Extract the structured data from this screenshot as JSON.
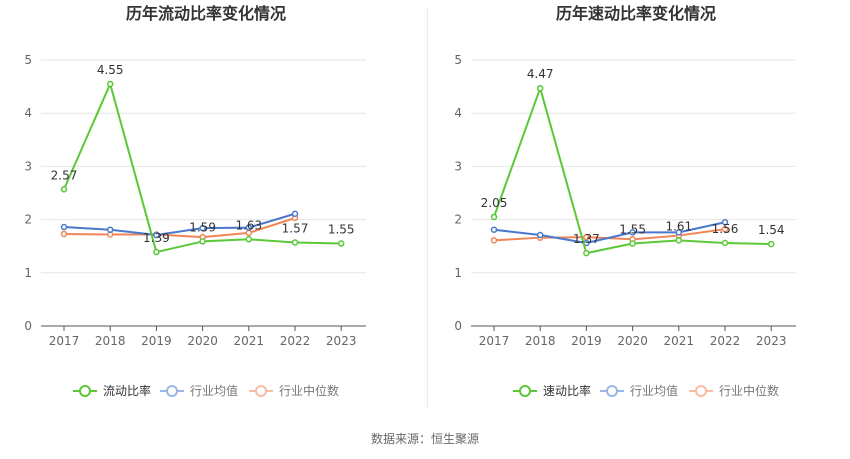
{
  "footer": {
    "source": "数据来源：恒生聚源"
  },
  "chart_data": [
    {
      "type": "line",
      "title": "历年流动比率变化情况",
      "categories": [
        "2017",
        "2018",
        "2019",
        "2020",
        "2021",
        "2022",
        "2023"
      ],
      "ylim": [
        0,
        5
      ],
      "yticks": [
        "0",
        "1",
        "2",
        "3",
        "4",
        "5"
      ],
      "grid": true,
      "legend_position": "bottom",
      "series": [
        {
          "name": "流动比率",
          "color": "#5ac837",
          "values": [
            2.57,
            4.55,
            1.39,
            1.59,
            1.63,
            1.57,
            1.55
          ],
          "labels": [
            "2.57",
            "4.55",
            "1.39",
            "1.59",
            "1.63",
            "1.57",
            "1.55"
          ]
        },
        {
          "name": "行业均值",
          "color": "#4a78cf",
          "values": [
            1.86,
            1.81,
            1.71,
            1.84,
            1.85,
            2.11,
            null
          ]
        },
        {
          "name": "行业中位数",
          "color": "#f08557",
          "values": [
            1.73,
            1.72,
            1.72,
            1.67,
            1.75,
            2.03,
            null
          ]
        }
      ]
    },
    {
      "type": "line",
      "title": "历年速动比率变化情况",
      "categories": [
        "2017",
        "2018",
        "2019",
        "2020",
        "2021",
        "2022",
        "2023"
      ],
      "ylim": [
        0,
        5
      ],
      "yticks": [
        "0",
        "1",
        "2",
        "3",
        "4",
        "5"
      ],
      "grid": true,
      "legend_position": "bottom",
      "series": [
        {
          "name": "速动比率",
          "color": "#5ac837",
          "values": [
            2.05,
            4.47,
            1.37,
            1.55,
            1.61,
            1.56,
            1.54
          ],
          "labels": [
            "2.05",
            "4.47",
            "1.37",
            "1.55",
            "1.61",
            "1.56",
            "1.54"
          ]
        },
        {
          "name": "行业均值",
          "color": "#4a78cf",
          "values": [
            1.81,
            1.71,
            1.56,
            1.76,
            1.76,
            1.95,
            null
          ]
        },
        {
          "name": "行业中位数",
          "color": "#f08557",
          "values": [
            1.61,
            1.66,
            1.67,
            1.63,
            1.7,
            1.82,
            null
          ]
        }
      ]
    }
  ]
}
